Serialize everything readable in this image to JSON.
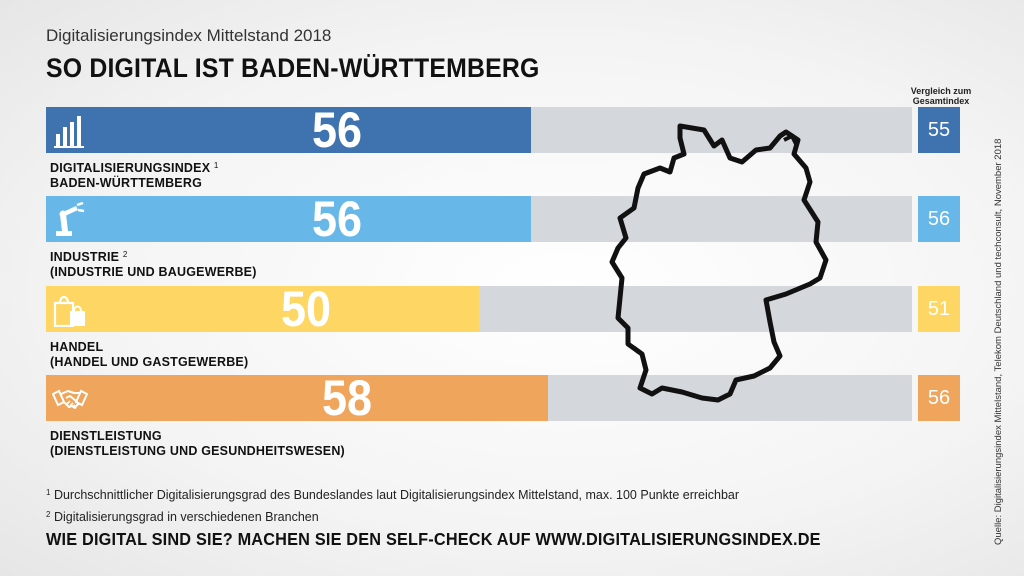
{
  "header": {
    "subtitle": "Digitalisierungsindex Mittelstand 2018",
    "title": "SO DIGITAL IST BADEN-WÜRTTEMBERG",
    "compare_line1": "Vergleich zum",
    "compare_line2": "Gesamtindex"
  },
  "chart_data": {
    "type": "bar",
    "orientation": "horizontal",
    "title": "SO DIGITAL IST BADEN-WÜRTTEMBERG",
    "xlim": [
      0,
      100
    ],
    "categories": [
      "Digitalisierungsindex Baden-Württemberg",
      "Industrie",
      "Handel",
      "Dienstleistung"
    ],
    "series": [
      {
        "name": "Baden-Württemberg",
        "values": [
          56,
          56,
          50,
          58
        ]
      },
      {
        "name": "Vergleich zum Gesamtindex",
        "values": [
          55,
          56,
          51,
          56
        ]
      }
    ]
  },
  "rows": [
    {
      "value": "56",
      "compare": "55",
      "label_line1": "DIGITALISIERUNGSINDEX",
      "label_sup": "1",
      "label_line2": "BADEN-WÜRTTEMBERG",
      "color": "#3f73b0",
      "icon": "bar-chart-icon"
    },
    {
      "value": "56",
      "compare": "56",
      "label_line1": "INDUSTRIE",
      "label_sup": "2",
      "label_line2": "(INDUSTRIE UND BAUGEWERBE)",
      "color": "#67b7e8",
      "icon": "robot-arm-icon"
    },
    {
      "value": "50",
      "compare": "51",
      "label_line1": "HANDEL",
      "label_sup": "",
      "label_line2": "(HANDEL UND GASTGEWERBE)",
      "color": "#fdd663",
      "icon": "shopping-bags-icon"
    },
    {
      "value": "58",
      "compare": "56",
      "label_line1": "DIENSTLEISTUNG",
      "label_sup": "",
      "label_line2": "(DIENSTLEISTUNG UND GESUNDHEITSWESEN)",
      "color": "#f0a55c",
      "icon": "handshake-icon"
    }
  ],
  "footnotes": {
    "n1_mark": "1",
    "n1": "Durchschnittlicher Digitalisierungsgrad des Bundeslandes laut Digitalisierungsindex Mittelstand, max. 100 Punkte erreichbar",
    "n2_mark": "2",
    "n2": "Digitalisierungsgrad in verschiedenen Branchen"
  },
  "cta": "WIE DIGITAL SIND SIE? MACHEN SIE DEN SELF-CHECK AUF WWW.DIGITALISIERUNGSINDEX.DE",
  "source": "Quelle: Digitalisierungsindex Mittelstand, Telekom Deutschland und techconsult, November 2018",
  "map_icon": "germany-map-outline-icon"
}
